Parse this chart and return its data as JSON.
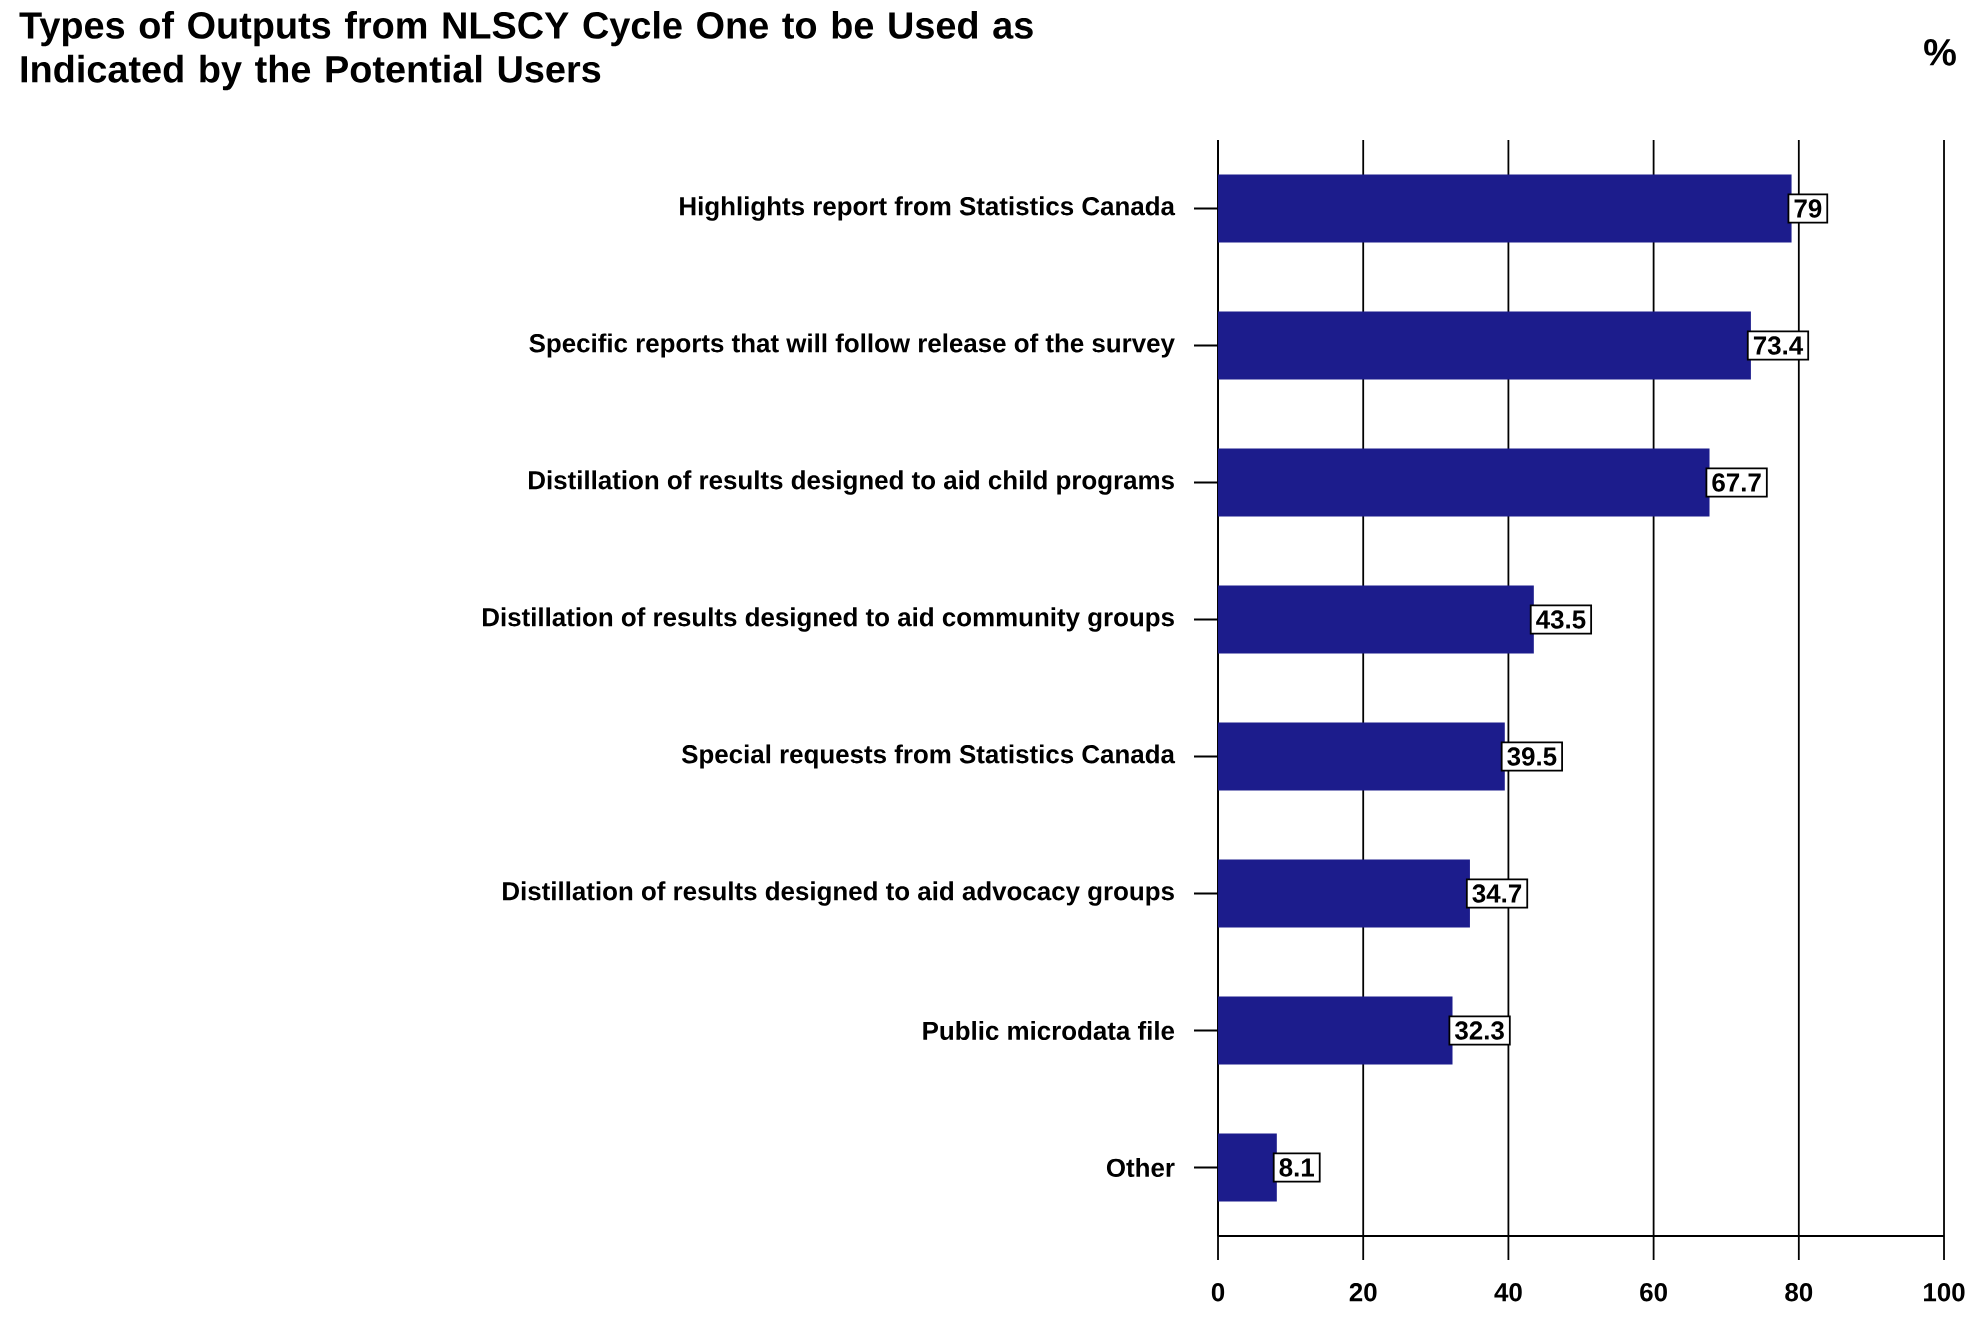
{
  "chart_data": {
    "type": "bar",
    "orientation": "horizontal",
    "title": "Types of Outputs from NLSCY Cycle One to be Used as Indicated by the Potential Users",
    "xlabel": "%",
    "categories": [
      "Highlights report from Statistics Canada",
      "Specific reports that will follow release of the survey",
      "Distillation of results designed to aid child programs",
      "Distillation of results designed to aid community groups",
      "Special requests from Statistics Canada",
      "Distillation of results designed to aid advocacy groups",
      "Public microdata file",
      "Other"
    ],
    "values": [
      79,
      73.4,
      67.7,
      43.5,
      39.5,
      34.7,
      32.3,
      8.1
    ],
    "color": "#1c1c8c",
    "xlim": [
      0,
      100
    ],
    "xticks": [
      0,
      20,
      40,
      60,
      80,
      100
    ],
    "grid": "x",
    "data_labels": true
  }
}
